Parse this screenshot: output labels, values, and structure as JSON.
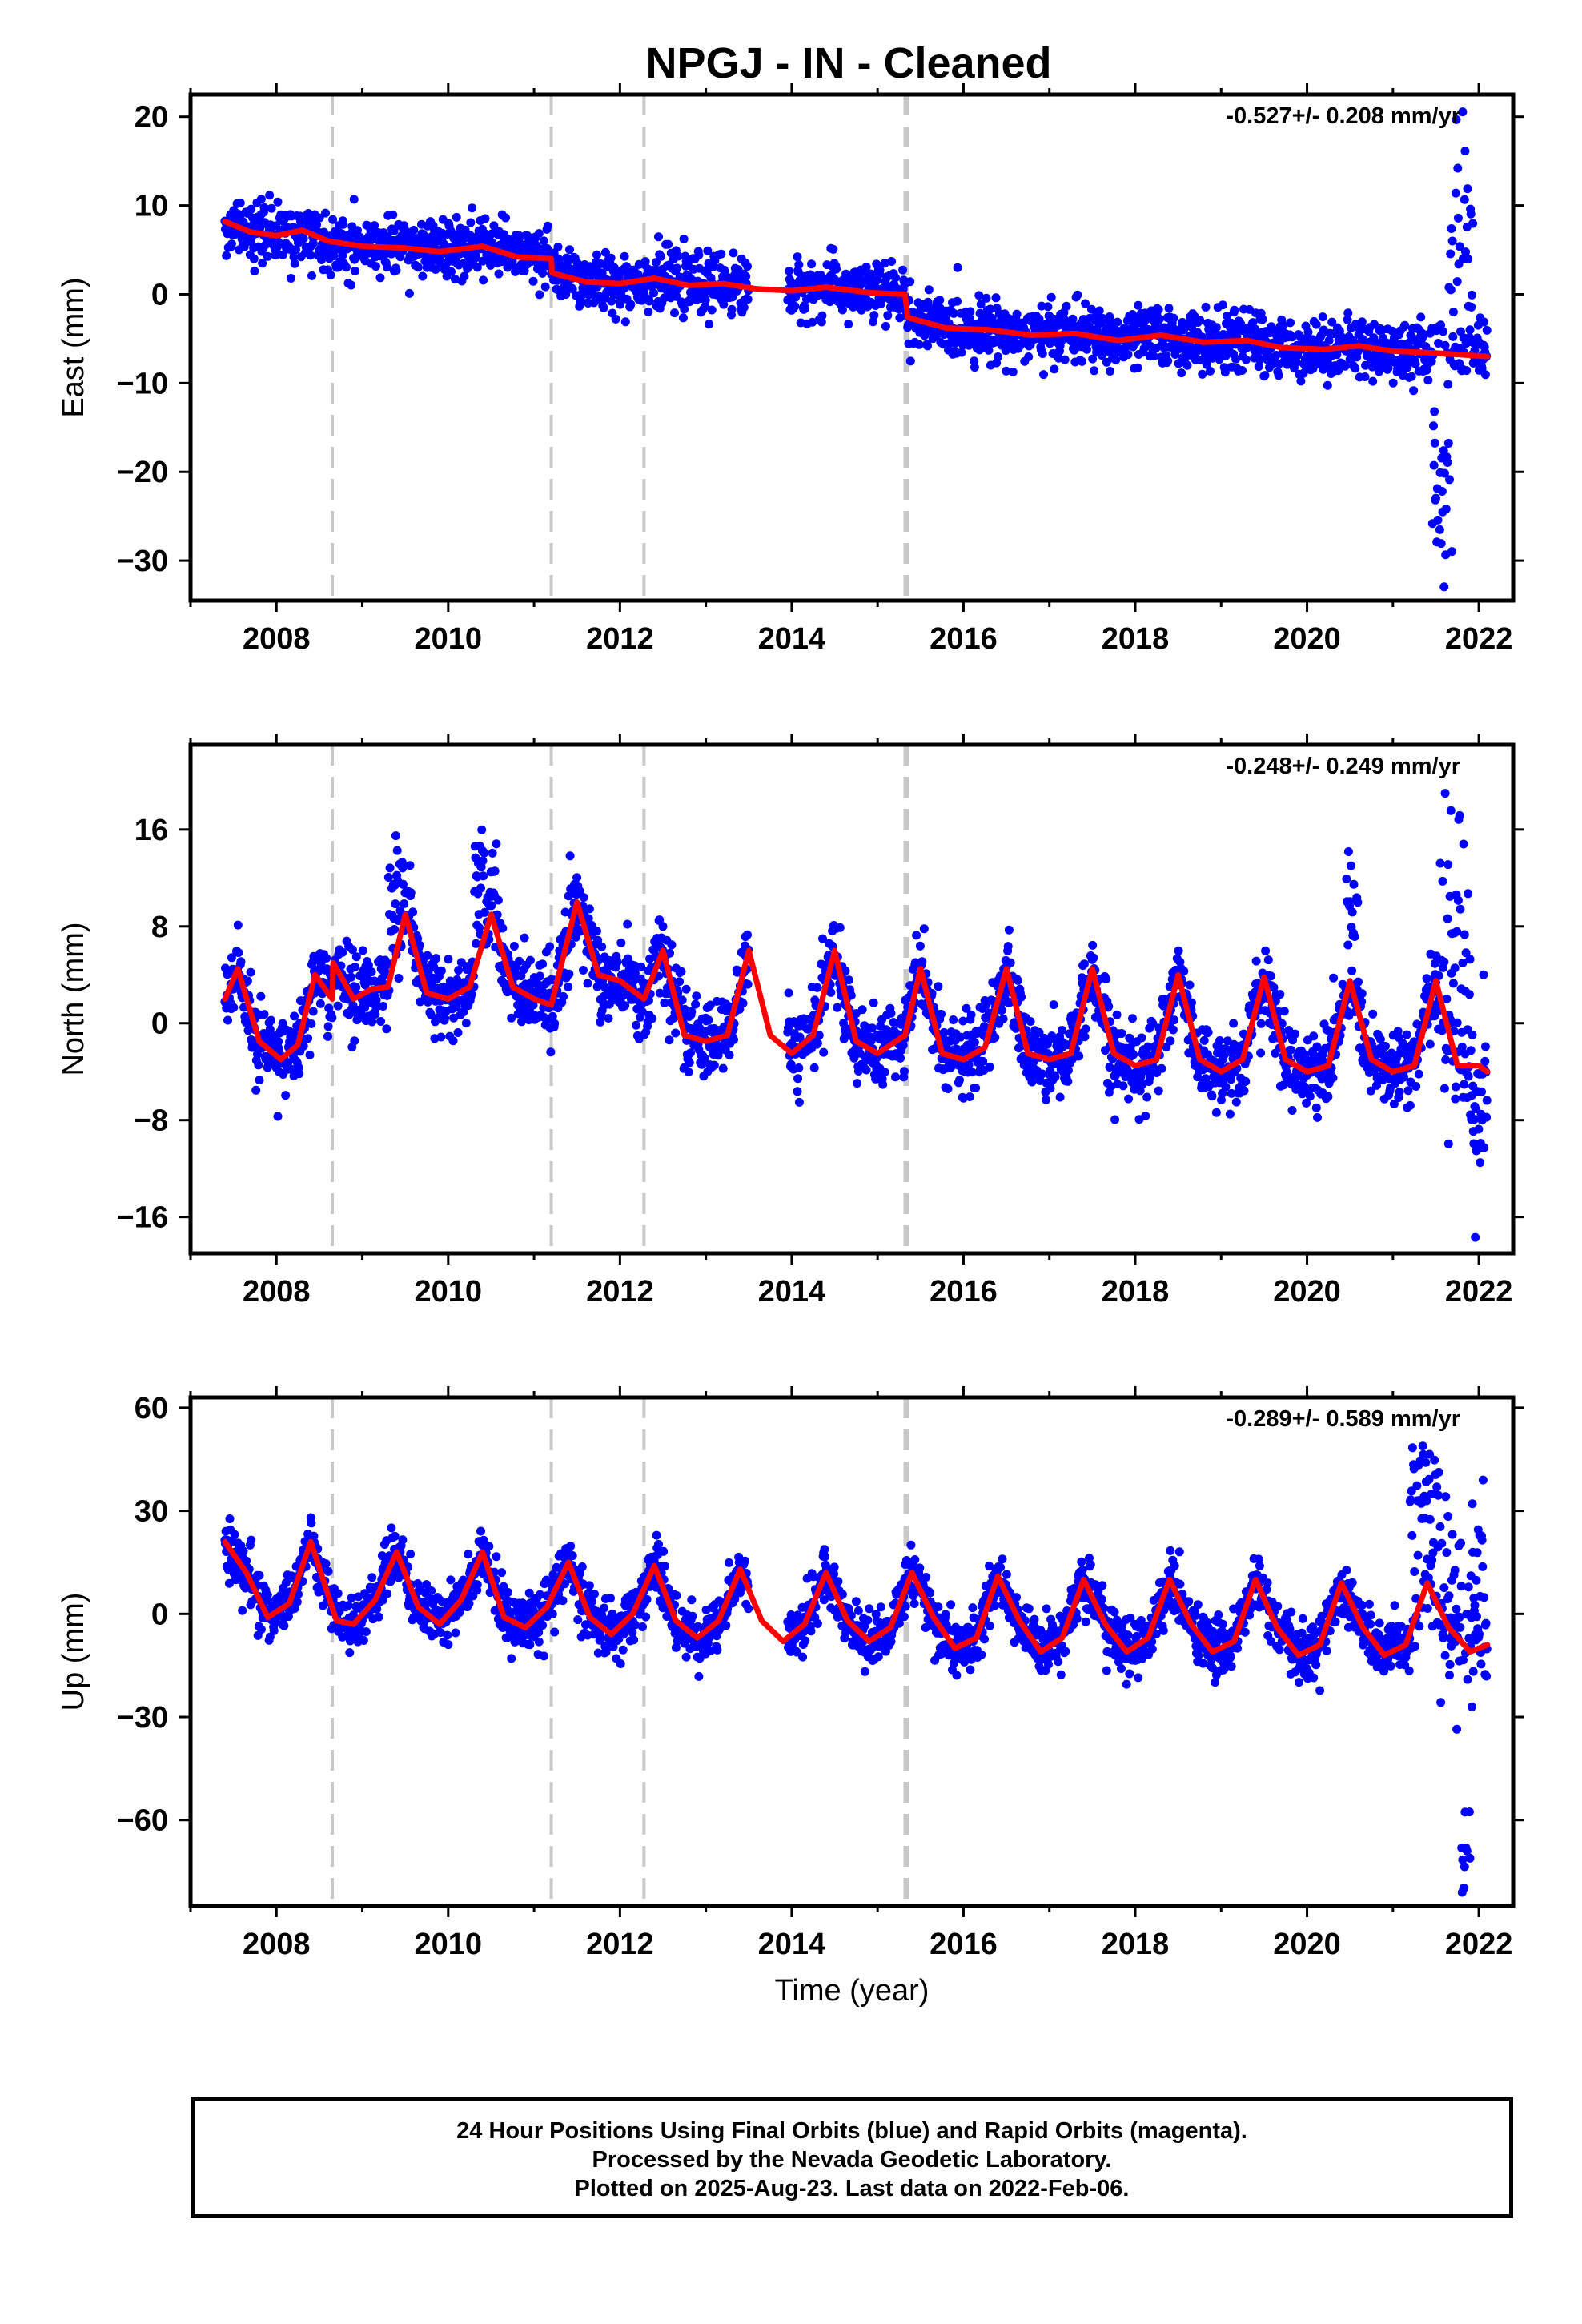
{
  "title": "NPGJ  - IN - Cleaned",
  "x_axis_label": "Time (year)",
  "footnote": {
    "line1": "24 Hour Positions Using Final Orbits (blue) and Rapid Orbits (magenta).",
    "line2": "Processed by the Nevada Geodetic Laboratory.",
    "line3": "Plotted on 2025-Aug-23. Last data on 2022-Feb-06."
  },
  "colors": {
    "final_orbits": "#0000ff",
    "fit": "#ff0000",
    "offsets": "#c8c8c8"
  },
  "chart_data": [
    {
      "type": "scatter",
      "ylabel": "East (mm)",
      "rate": "-0.527+/- 0.208 mm/yr",
      "xlim": [
        2007.0,
        2022.4
      ],
      "ylim": [
        -34.5,
        22.5
      ],
      "xticks": [
        2008,
        2010,
        2012,
        2014,
        2016,
        2018,
        2020,
        2022
      ],
      "yticks": [
        20,
        10,
        0,
        -10,
        -20,
        -30
      ],
      "offsets": [
        2008.65,
        2011.2,
        2012.28,
        2015.32,
        2015.35
      ],
      "data_range": [
        2007.4,
        2022.1
      ],
      "trend": {
        "start": 8.0,
        "rate": -0.527
      },
      "steps": [
        {
          "at": 2011.2,
          "value": -1.8
        },
        {
          "at": 2015.33,
          "value": -2.5
        }
      ],
      "seasonal": {
        "amp": 0.6,
        "phase": 0.3
      },
      "scatter_sigma": 1.6,
      "gaps": [
        [
          2013.5,
          2013.95
        ]
      ],
      "excursions": [
        {
          "from": 2021.45,
          "to": 2021.7,
          "value": -20,
          "sigma": 6
        },
        {
          "from": 2021.65,
          "to": 2021.95,
          "value": 5,
          "sigma": 8
        }
      ],
      "fit_series": [
        [
          2007.4,
          8.2
        ],
        [
          2007.7,
          7.0
        ],
        [
          2008.0,
          6.6
        ],
        [
          2008.3,
          7.2
        ],
        [
          2008.6,
          6.0
        ],
        [
          2009.0,
          5.4
        ],
        [
          2009.5,
          5.2
        ],
        [
          2009.9,
          4.8
        ],
        [
          2010.4,
          5.4
        ],
        [
          2010.8,
          4.2
        ],
        [
          2011.2,
          4.0
        ],
        [
          2011.21,
          2.4
        ],
        [
          2011.6,
          1.4
        ],
        [
          2012.0,
          1.2
        ],
        [
          2012.4,
          1.8
        ],
        [
          2012.8,
          1.0
        ],
        [
          2013.2,
          1.2
        ],
        [
          2013.6,
          0.6
        ],
        [
          2014.0,
          0.4
        ],
        [
          2014.4,
          0.8
        ],
        [
          2014.9,
          0.2
        ],
        [
          2015.32,
          0.0
        ],
        [
          2015.35,
          -2.6
        ],
        [
          2015.8,
          -3.8
        ],
        [
          2016.3,
          -4.0
        ],
        [
          2016.8,
          -4.6
        ],
        [
          2017.3,
          -4.4
        ],
        [
          2017.8,
          -5.2
        ],
        [
          2018.3,
          -4.6
        ],
        [
          2018.8,
          -5.4
        ],
        [
          2019.3,
          -5.2
        ],
        [
          2019.7,
          -6.0
        ],
        [
          2020.2,
          -6.2
        ],
        [
          2020.6,
          -5.8
        ],
        [
          2021.0,
          -6.4
        ],
        [
          2021.5,
          -6.6
        ],
        [
          2022.1,
          -7.0
        ]
      ]
    },
    {
      "type": "scatter",
      "ylabel": "North (mm)",
      "rate": "-0.248+/- 0.249 mm/yr",
      "xlim": [
        2007.0,
        2022.4
      ],
      "ylim": [
        -19,
        23
      ],
      "xticks": [
        2008,
        2010,
        2012,
        2014,
        2016,
        2018,
        2020,
        2022
      ],
      "yticks": [
        16,
        8,
        0,
        -8,
        -16
      ],
      "offsets": [
        2008.65,
        2011.2,
        2012.28,
        2015.32,
        2015.35
      ],
      "data_range": [
        2007.4,
        2022.1
      ],
      "trend": {
        "start": 1.5,
        "rate": -0.248
      },
      "steps": [],
      "seasonal": {
        "amp": 3.5,
        "phase": 0.45
      },
      "scatter_sigma": 1.6,
      "gaps": [
        [
          2013.5,
          2013.95
        ]
      ],
      "excursions": [
        {
          "from": 2009.3,
          "to": 2009.6,
          "value": 10,
          "sigma": 2.5
        },
        {
          "from": 2010.3,
          "to": 2010.6,
          "value": 12,
          "sigma": 2.5
        },
        {
          "from": 2020.45,
          "to": 2020.6,
          "value": 9,
          "sigma": 2.5
        },
        {
          "from": 2021.55,
          "to": 2021.9,
          "value": 10,
          "sigma": 6
        },
        {
          "from": 2021.9,
          "to": 2022.1,
          "value": -9,
          "sigma": 4
        }
      ],
      "fit_series": [
        [
          2007.4,
          2.0
        ],
        [
          2007.55,
          4.5
        ],
        [
          2007.8,
          -1.5
        ],
        [
          2008.05,
          -3.0
        ],
        [
          2008.25,
          -1.8
        ],
        [
          2008.45,
          4.0
        ],
        [
          2008.65,
          2.0
        ],
        [
          2008.66,
          5.0
        ],
        [
          2008.9,
          2.0
        ],
        [
          2009.1,
          2.8
        ],
        [
          2009.3,
          3.0
        ],
        [
          2009.5,
          9.0
        ],
        [
          2009.75,
          2.5
        ],
        [
          2010.0,
          2.0
        ],
        [
          2010.25,
          3.0
        ],
        [
          2010.5,
          9.0
        ],
        [
          2010.75,
          3.0
        ],
        [
          2011.0,
          2.0
        ],
        [
          2011.2,
          1.5
        ],
        [
          2011.5,
          10.0
        ],
        [
          2011.75,
          4.0
        ],
        [
          2012.0,
          3.5
        ],
        [
          2012.28,
          2.0
        ],
        [
          2012.5,
          6.0
        ],
        [
          2012.75,
          -1.0
        ],
        [
          2013.0,
          -1.5
        ],
        [
          2013.25,
          -1.0
        ],
        [
          2013.5,
          6.0
        ],
        [
          2013.75,
          -1.0
        ],
        [
          2014.0,
          -2.5
        ],
        [
          2014.25,
          -1.0
        ],
        [
          2014.5,
          6.0
        ],
        [
          2014.75,
          -1.5
        ],
        [
          2015.0,
          -2.5
        ],
        [
          2015.32,
          -1.0
        ],
        [
          2015.5,
          4.5
        ],
        [
          2015.75,
          -2.5
        ],
        [
          2016.0,
          -3.0
        ],
        [
          2016.25,
          -2.0
        ],
        [
          2016.5,
          4.5
        ],
        [
          2016.75,
          -2.5
        ],
        [
          2017.0,
          -3.0
        ],
        [
          2017.25,
          -2.5
        ],
        [
          2017.5,
          4.5
        ],
        [
          2017.75,
          -2.5
        ],
        [
          2018.0,
          -3.5
        ],
        [
          2018.25,
          -3.0
        ],
        [
          2018.5,
          4.0
        ],
        [
          2018.75,
          -3.0
        ],
        [
          2019.0,
          -4.0
        ],
        [
          2019.25,
          -3.0
        ],
        [
          2019.5,
          3.8
        ],
        [
          2019.75,
          -3.0
        ],
        [
          2020.0,
          -4.0
        ],
        [
          2020.25,
          -3.5
        ],
        [
          2020.5,
          3.5
        ],
        [
          2020.75,
          -3.0
        ],
        [
          2021.0,
          -4.0
        ],
        [
          2021.25,
          -3.5
        ],
        [
          2021.5,
          3.5
        ],
        [
          2021.75,
          -3.5
        ],
        [
          2022.0,
          -3.5
        ],
        [
          2022.1,
          -4.0
        ]
      ]
    },
    {
      "type": "scatter",
      "ylabel": "Up (mm)",
      "rate": "-0.289+/- 0.589 mm/yr",
      "xlim": [
        2007.0,
        2022.4
      ],
      "ylim": [
        -85,
        63
      ],
      "xticks": [
        2008,
        2010,
        2012,
        2014,
        2016,
        2018,
        2020,
        2022
      ],
      "yticks": [
        60,
        30,
        0,
        -30,
        -60
      ],
      "offsets": [
        2008.65,
        2011.2,
        2012.28,
        2015.32,
        2015.35
      ],
      "data_range": [
        2007.4,
        2022.1
      ],
      "trend": {
        "start": 9.5,
        "rate": -0.289
      },
      "steps": [],
      "seasonal": {
        "amp": 11.5,
        "phase": 0.2
      },
      "scatter_sigma": 4.0,
      "gaps": [
        [
          2013.5,
          2013.95
        ]
      ],
      "excursions": [
        {
          "from": 2021.2,
          "to": 2021.55,
          "value": 35,
          "sigma": 10
        },
        {
          "from": 2021.55,
          "to": 2022.1,
          "value": 5,
          "sigma": 15
        },
        {
          "from": 2021.8,
          "to": 2021.9,
          "value": -65,
          "sigma": 10
        }
      ],
      "fit_series": [
        [
          2007.4,
          21
        ],
        [
          2007.65,
          12
        ],
        [
          2007.9,
          -1
        ],
        [
          2008.15,
          3
        ],
        [
          2008.4,
          21
        ],
        [
          2008.7,
          -2
        ],
        [
          2008.9,
          -3
        ],
        [
          2009.15,
          4
        ],
        [
          2009.4,
          18
        ],
        [
          2009.65,
          2
        ],
        [
          2009.9,
          -3
        ],
        [
          2010.15,
          4
        ],
        [
          2010.4,
          18
        ],
        [
          2010.65,
          -1
        ],
        [
          2010.9,
          -4
        ],
        [
          2011.15,
          2
        ],
        [
          2011.4,
          15
        ],
        [
          2011.65,
          -1
        ],
        [
          2011.9,
          -6
        ],
        [
          2012.15,
          0
        ],
        [
          2012.4,
          14
        ],
        [
          2012.65,
          -2
        ],
        [
          2012.9,
          -7
        ],
        [
          2013.15,
          -2
        ],
        [
          2013.4,
          13
        ],
        [
          2013.65,
          -2
        ],
        [
          2013.9,
          -8
        ],
        [
          2014.15,
          -3
        ],
        [
          2014.4,
          12
        ],
        [
          2014.65,
          -2
        ],
        [
          2014.9,
          -8
        ],
        [
          2015.15,
          -4
        ],
        [
          2015.4,
          12
        ],
        [
          2015.65,
          -1
        ],
        [
          2015.9,
          -10
        ],
        [
          2016.15,
          -7
        ],
        [
          2016.4,
          11
        ],
        [
          2016.65,
          -2
        ],
        [
          2016.9,
          -11
        ],
        [
          2017.15,
          -7
        ],
        [
          2017.4,
          10
        ],
        [
          2017.65,
          -3
        ],
        [
          2017.9,
          -11
        ],
        [
          2018.15,
          -7
        ],
        [
          2018.4,
          10
        ],
        [
          2018.65,
          -3
        ],
        [
          2018.9,
          -11
        ],
        [
          2019.15,
          -8
        ],
        [
          2019.4,
          10
        ],
        [
          2019.65,
          -4
        ],
        [
          2019.9,
          -12
        ],
        [
          2020.15,
          -9
        ],
        [
          2020.4,
          9
        ],
        [
          2020.65,
          -4
        ],
        [
          2020.9,
          -12
        ],
        [
          2021.15,
          -9
        ],
        [
          2021.4,
          9
        ],
        [
          2021.65,
          -4
        ],
        [
          2021.9,
          -11
        ],
        [
          2022.1,
          -9
        ]
      ]
    }
  ]
}
